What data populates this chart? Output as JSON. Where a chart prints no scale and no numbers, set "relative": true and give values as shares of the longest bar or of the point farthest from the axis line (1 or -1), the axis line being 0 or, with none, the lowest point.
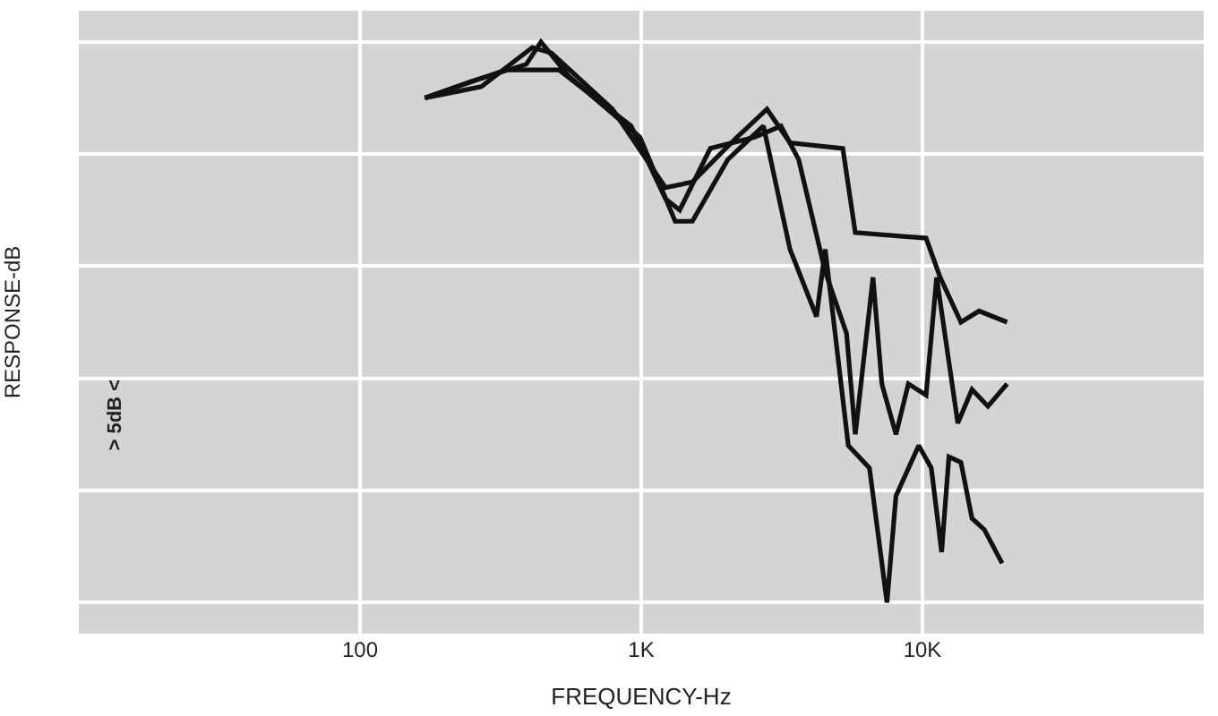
{
  "chart_data": {
    "type": "line",
    "xlabel": "FREQUENCY-Hz",
    "ylabel": "RESPONSE-dB",
    "annotations": [
      "> 5dB <"
    ],
    "relative": true,
    "log": "x",
    "xlim": [
      10,
      100000
    ],
    "xticks": [
      100,
      {
        "value": 1000,
        "label": "1K"
      },
      {
        "value": 10000,
        "label": "10K"
      }
    ],
    "grid": true,
    "line_style": "solid",
    "series": [
      {
        "color": "#111111",
        "x": [
          170,
          270,
          410,
          480,
          790,
          1220,
          1520,
          2190,
          2800,
          3380,
          5210,
          5770,
          10300,
          11560,
          13700,
          15900,
          20000
        ],
        "values": [
          0.9,
          0.92,
          0.99,
          0.98,
          0.88,
          0.74,
          0.75,
          0.83,
          0.88,
          0.82,
          0.81,
          0.66,
          0.65,
          0.58,
          0.5,
          0.52,
          0.5
        ]
      },
      {
        "color": "#111111",
        "x": [
          170,
          330,
          510,
          920,
          1220,
          1370,
          1760,
          2530,
          3140,
          3630,
          4510,
          5370,
          5770,
          6670,
          7170,
          8050,
          8910,
          10300,
          11230,
          13360,
          15000,
          17100,
          20000
        ],
        "values": [
          0.9,
          0.95,
          0.95,
          0.85,
          0.72,
          0.7,
          0.81,
          0.83,
          0.85,
          0.79,
          0.59,
          0.48,
          0.3,
          0.58,
          0.39,
          0.3,
          0.39,
          0.37,
          0.58,
          0.32,
          0.38,
          0.35,
          0.39
        ]
      },
      {
        "color": "#111111",
        "x": [
          170,
          250,
          390,
          440,
          550,
          990,
          1320,
          1520,
          2030,
          2720,
          3380,
          4200,
          4510,
          5450,
          6480,
          7480,
          8050,
          9700,
          10750,
          11700,
          12420,
          13700,
          15000,
          16600,
          19200
        ],
        "values": [
          0.9,
          0.93,
          0.96,
          1.0,
          0.94,
          0.83,
          0.68,
          0.68,
          0.79,
          0.85,
          0.63,
          0.51,
          0.63,
          0.28,
          0.24,
          0.0,
          0.19,
          0.28,
          0.24,
          0.09,
          0.26,
          0.25,
          0.15,
          0.13,
          0.07
        ]
      }
    ]
  }
}
